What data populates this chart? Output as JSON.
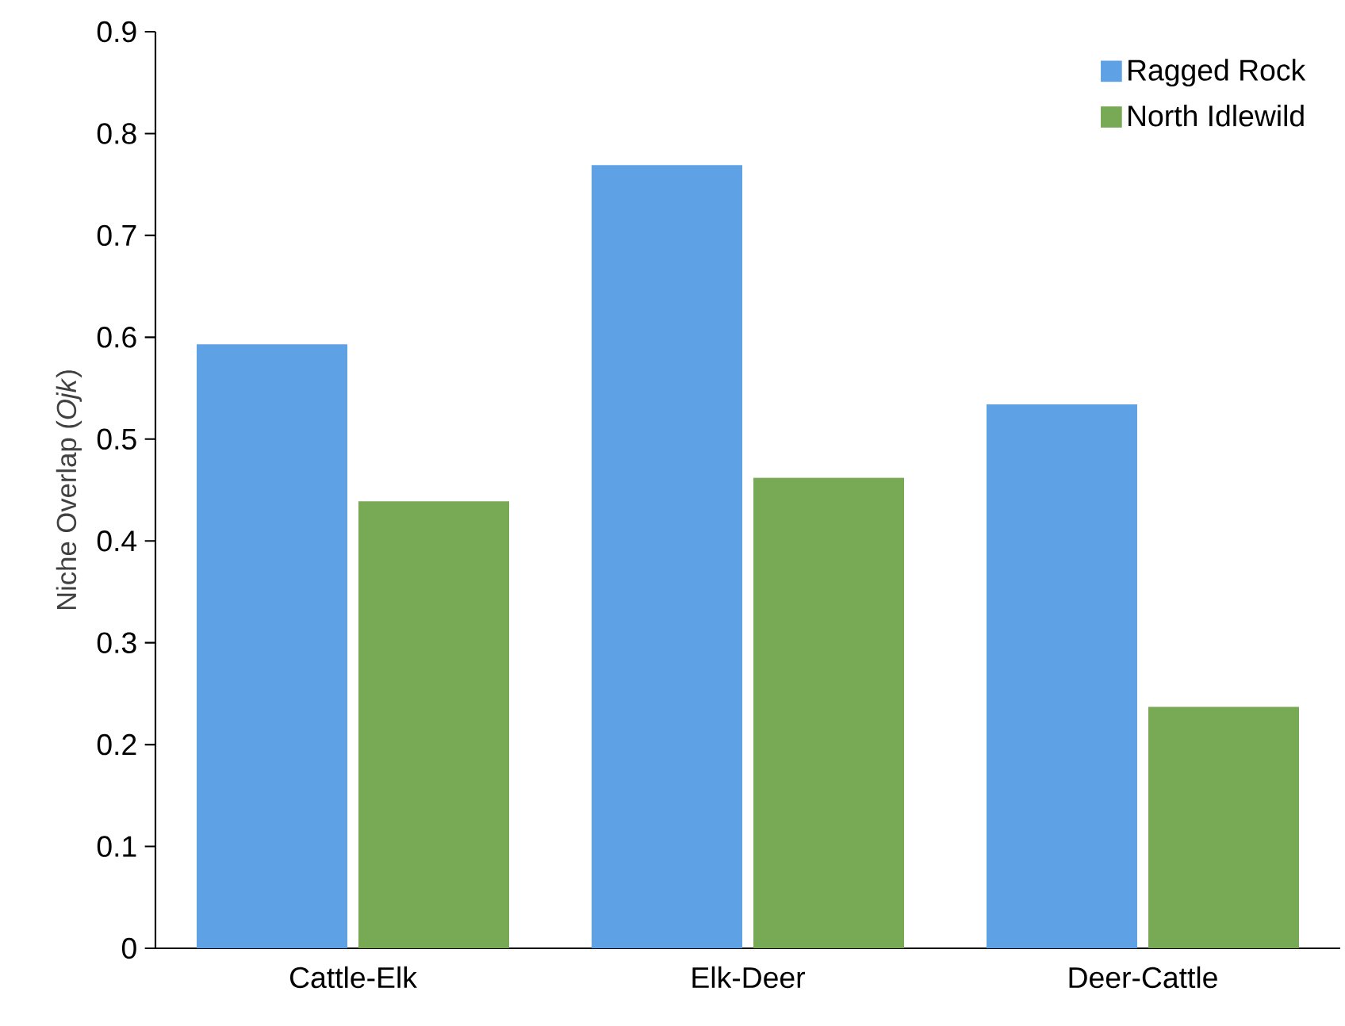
{
  "chart_data": {
    "type": "bar",
    "ylabel": "Niche Overlap (*Ojk*)",
    "categories": [
      "Cattle-Elk",
      "Elk-Deer",
      "Deer-Cattle"
    ],
    "series": [
      {
        "name": "Ragged Rock",
        "color": "#5ea1e4",
        "values": [
          0.593,
          0.769,
          0.534
        ]
      },
      {
        "name": "North Idlewild",
        "color": "#78a955",
        "values": [
          0.439,
          0.462,
          0.237
        ]
      }
    ],
    "ylim": [
      0,
      0.9
    ],
    "yticks": [
      0,
      0.1,
      0.2,
      0.3,
      0.4,
      0.5,
      0.6,
      0.7,
      0.8,
      0.9
    ],
    "legend": "top right"
  }
}
